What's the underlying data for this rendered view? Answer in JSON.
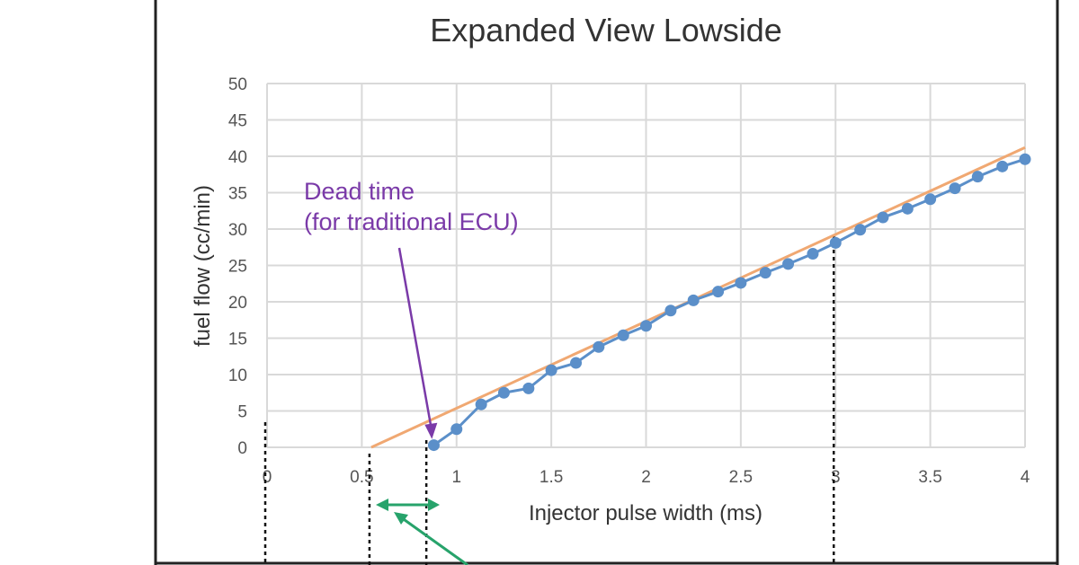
{
  "chart_data": {
    "type": "line",
    "title": "Expanded View Lowside",
    "xlabel": "Injector pulse width (ms)",
    "ylabel": "fuel flow (cc/min)",
    "xlim": [
      0,
      4
    ],
    "ylim": [
      0,
      50
    ],
    "xticks": [
      "0",
      "0.5",
      "1",
      "1.5",
      "2",
      "2.5",
      "3",
      "3.5",
      "4"
    ],
    "xtick_values": [
      0,
      0.5,
      1,
      1.5,
      2,
      2.5,
      3,
      3.5,
      4
    ],
    "yticks": [
      "0",
      "5",
      "10",
      "15",
      "20",
      "25",
      "30",
      "35",
      "40",
      "45",
      "50"
    ],
    "ytick_values": [
      0,
      5,
      10,
      15,
      20,
      25,
      30,
      35,
      40,
      45,
      50
    ],
    "grid": true,
    "series": [
      {
        "values_x": [
          0.88,
          1.0,
          1.13,
          1.25,
          1.38,
          1.5,
          1.63,
          1.75,
          1.88,
          2.0,
          2.13,
          2.25,
          2.38,
          2.5,
          2.63,
          2.75,
          2.88,
          3.0,
          3.13,
          3.25,
          3.38,
          3.5,
          3.63,
          3.75,
          3.88,
          4.0
        ],
        "values_y": [
          0.3,
          2.5,
          5.9,
          7.5,
          8.1,
          10.6,
          11.6,
          13.8,
          15.4,
          16.7,
          18.8,
          20.2,
          21.4,
          22.6,
          24.0,
          25.2,
          26.6,
          28.1,
          29.9,
          31.6,
          32.8,
          34.1,
          35.6,
          37.2,
          38.6,
          39.6
        ],
        "color": "#5b8fc9"
      },
      {
        "values_x": [
          0.55,
          4.0
        ],
        "values_y": [
          0,
          41.2
        ],
        "color": "#f0a872"
      }
    ],
    "reference_lines_x": [
      0,
      0.55,
      0.85,
      3.0
    ],
    "annotations": [
      {
        "text_lines": [
          "Dead time",
          "(for traditional ECU)"
        ],
        "color": "#7a3aa8",
        "points_to": [
          0.87,
          0.4
        ]
      }
    ],
    "arrow_color": "#27a36b"
  }
}
